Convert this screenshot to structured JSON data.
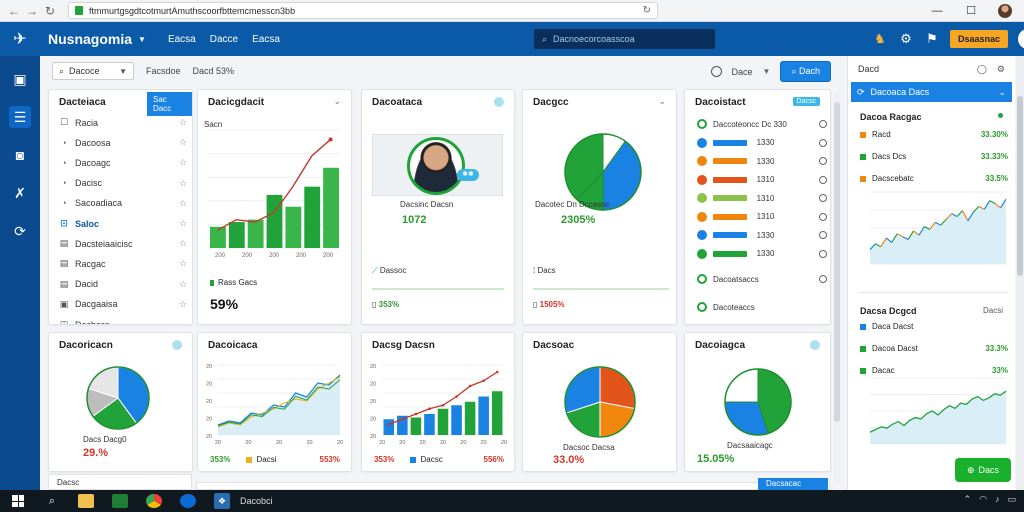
{
  "browser": {
    "url": "ftmmurtgsgdtcotmurtAmuthscoorfbttemcmesscn3bb",
    "back": "←",
    "forward": "→",
    "reload": "↻",
    "bookmark": "↻",
    "minimize": "—",
    "maximize": "☐",
    "close": "✕"
  },
  "header": {
    "app_name": "Nusnagomia",
    "nav": [
      "Eacsa",
      "Dacce",
      "Eacsa"
    ],
    "search_placeholder": "Dacnoecorcoasscoa",
    "upgrade_label": "Dsaasnac"
  },
  "toolbar": {
    "filter_label": "Dacoce",
    "filter2": "Facsdoe",
    "filter3": "Dacd 53%",
    "right_label": "Dace",
    "primary_btn": "Dach"
  },
  "cards": {
    "list": {
      "title": "Dacteiaca",
      "tab": "Sac Dacc",
      "items": [
        {
          "icon": "☐",
          "label": "Racia"
        },
        {
          "icon": "◔",
          "label": "Dacoosa"
        },
        {
          "icon": "◔",
          "label": "Dacoagc"
        },
        {
          "icon": "◔",
          "label": "Dacisc"
        },
        {
          "icon": "◔",
          "label": "Sacoadiaca"
        },
        {
          "icon": "⊡",
          "label": "Saloc"
        },
        {
          "icon": "▤",
          "label": "Dacsteiaaicisc"
        },
        {
          "icon": "▤",
          "label": "Racgac"
        },
        {
          "icon": "▤",
          "label": "Dacid"
        },
        {
          "icon": "▣",
          "label": "Dacgaaisa"
        },
        {
          "icon": "◫",
          "label": "Dacbccs"
        }
      ]
    },
    "bar1": {
      "title": "Dacicgdacit",
      "small": "Sacn",
      "ticks": [
        "200",
        "200",
        "200",
        "200",
        "200"
      ],
      "legend": "Rass Gacs",
      "value": "59%"
    },
    "profile": {
      "title": "Dacoataca",
      "caption": "Dacsinc Dacsn",
      "value": "1072",
      "sub": "Dassoc",
      "foot_value": "353%"
    },
    "pie1": {
      "title": "Dacgcc",
      "caption": "Dacotec Dn Dccasoc",
      "value": "2305%",
      "sub": "Dacs",
      "foot_value": "1505%"
    },
    "status": {
      "title": "Dacoistact",
      "tag": "Dacsc",
      "rows": [
        {
          "label": "Daccoteoncc Dc 330",
          "color": "#22a33a",
          "bar": 0
        },
        {
          "label": "1330",
          "color": "#1a82e2",
          "bar": 0.6
        },
        {
          "label": "1330",
          "color": "#f0860e",
          "bar": 0.6
        },
        {
          "label": "1310",
          "color": "#e2541a",
          "bar": 0.6
        },
        {
          "label": "1310",
          "color": "#8bc34a",
          "bar": 0.6
        },
        {
          "label": "1310",
          "color": "#f0860e",
          "bar": 0.6
        },
        {
          "label": "1330",
          "color": "#1a82e2",
          "bar": 0.6
        },
        {
          "label": "1330",
          "color": "#22a33a",
          "bar": 0.6
        }
      ],
      "row_foot1": "Dacoatsaccs",
      "row_foot2": "Dacoteaccs"
    },
    "pie2": {
      "title": "Dacoricacn",
      "caption": "Dacs Dacg0",
      "value": "29.%"
    },
    "line1": {
      "title": "Dacoicaca",
      "ticks": [
        "20",
        "20",
        "20",
        "20",
        "20"
      ],
      "left_val": "353%",
      "mid": "Dacsi",
      "right_val": "553%"
    },
    "bar2": {
      "title": "Dacsg Dacsn",
      "ticks": [
        "20",
        "20",
        "20",
        "20",
        "20",
        "20",
        "20"
      ],
      "left_val": "353%",
      "mid": "Dacsc",
      "right_val": "556%"
    },
    "pie3": {
      "title": "Dacsoac",
      "caption": "Dacsoc Dacsa",
      "value": "33.0%"
    },
    "pie4": {
      "title": "Dacoiagca",
      "caption": "Dacsaaicagc",
      "value": "15.05%"
    }
  },
  "right_panel": {
    "head": "Dacd",
    "select": "Dacoaca Dacs",
    "sec1_title": "Dacoa Racgac",
    "sec1_rows": [
      {
        "label": "Racd",
        "value": "33.30%",
        "color": "#f0860e"
      },
      {
        "label": "Dacs Dcs",
        "value": "33.33%",
        "color": "#22a33a"
      },
      {
        "label": "Dacscebatc",
        "value": "33.5%",
        "color": "#f0860e"
      }
    ],
    "sec2_title": "Dacsa Dcgcd",
    "sec2_sub": "Dacsi",
    "sec2_rows": [
      {
        "label": "Daca Dacst",
        "value": "",
        "color": "#1a82e2"
      },
      {
        "label": "Dacoa Dacst",
        "value": "33.3%",
        "color": "#22a33a"
      },
      {
        "label": "Dacac",
        "value": "33%",
        "color": "#22a33a"
      }
    ],
    "btn": "Dacs"
  },
  "bottom": {
    "strip": "Dacsc",
    "blue": "Dacsacac"
  },
  "taskbar": {
    "active_label": "Dacobci"
  },
  "colors": {
    "primary": "#0b5aa8",
    "accent": "#1a82e2",
    "green": "#22a33a",
    "red": "#d7342a"
  },
  "chart_data": [
    {
      "type": "bar",
      "values": [
        18,
        22,
        24,
        45,
        35,
        52,
        68
      ],
      "trend": [
        15,
        24,
        22,
        30,
        52,
        78,
        92
      ],
      "ylim": [
        0,
        100
      ]
    },
    {
      "type": "pie",
      "values": [
        10,
        40,
        12,
        38
      ],
      "colors": [
        "#ffffff",
        "#1a82e2",
        "#22a33a",
        "#22a33a"
      ]
    },
    {
      "type": "pie",
      "values": [
        40,
        25,
        15,
        20
      ],
      "colors": [
        "#1a82e2",
        "#22a33a",
        "#bdbdbd",
        "#e6e6e6"
      ]
    },
    {
      "type": "line",
      "values": [
        10,
        14,
        12,
        22,
        20,
        30,
        28,
        42,
        38,
        52,
        50,
        60
      ],
      "secondary": [
        8,
        12,
        10,
        18,
        22,
        26,
        32,
        36,
        34,
        46,
        52,
        58
      ],
      "ylim": [
        0,
        70
      ]
    },
    {
      "type": "bar",
      "values": [
        18,
        22,
        20,
        24,
        30,
        34,
        38,
        44,
        50
      ],
      "colors": [
        "#1a82e2",
        "#1a82e2",
        "#22a33a",
        "#1a82e2",
        "#22a33a",
        "#1a82e2",
        "#22a33a",
        "#1a82e2",
        "#22a33a"
      ],
      "trend": [
        12,
        18,
        24,
        30,
        34,
        44,
        56,
        62,
        72
      ],
      "ylim": [
        0,
        80
      ]
    },
    {
      "type": "pie",
      "values": [
        28,
        22,
        20,
        30
      ],
      "colors": [
        "#e2541a",
        "#f0860e",
        "#22a33a",
        "#1a82e2"
      ]
    },
    {
      "type": "pie",
      "values": [
        45,
        30,
        25
      ],
      "colors": [
        "#22a33a",
        "#1a82e2",
        "#ffffff"
      ]
    },
    {
      "type": "line",
      "values": [
        20,
        28,
        24,
        36,
        30,
        42,
        38,
        34,
        46,
        40,
        52,
        48,
        58,
        54,
        62,
        70,
        66,
        74,
        60,
        72,
        80,
        76,
        88,
        84,
        78,
        90
      ],
      "ylim": [
        0,
        100
      ]
    },
    {
      "type": "line",
      "values": [
        18,
        22,
        26,
        24,
        30,
        34,
        28,
        36,
        40,
        38,
        46,
        50,
        44,
        52,
        58,
        54,
        62,
        60,
        68,
        72,
        66,
        70,
        76,
        74,
        80
      ],
      "ylim": [
        0,
        100
      ]
    }
  ]
}
